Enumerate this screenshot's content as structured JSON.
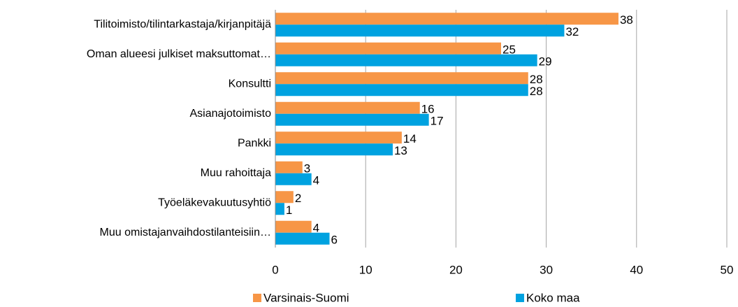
{
  "chart_data": {
    "type": "bar",
    "orientation": "horizontal",
    "categories": [
      "Tilitoimisto/tilintarkastaja/kirjanpitäjä",
      "Oman alueesi julkiset maksuttomat…",
      "Konsultti",
      "Asianajotoimisto",
      "Pankki",
      "Muu rahoittaja",
      "Työeläkevakuutusyhtiö",
      "Muu omistajanvaihdostilanteisiin…"
    ],
    "series": [
      {
        "name": "Varsinais-Suomi",
        "color": "#f79646",
        "values": [
          38,
          25,
          28,
          16,
          14,
          3,
          2,
          4
        ]
      },
      {
        "name": "Koko maa",
        "color": "#00a2e0",
        "values": [
          32,
          29,
          28,
          17,
          13,
          4,
          1,
          6
        ]
      }
    ],
    "xlim": [
      0,
      50
    ],
    "xticks": [
      0,
      10,
      20,
      30,
      40,
      50
    ],
    "grid": true,
    "legend": "bottom"
  }
}
